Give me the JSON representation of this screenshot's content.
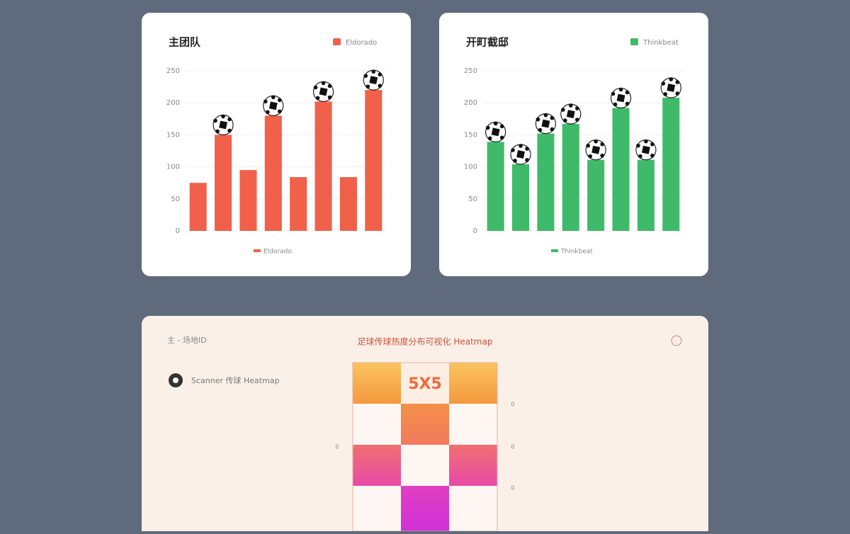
{
  "chart_data": [
    {
      "type": "bar",
      "title": "主团队",
      "series": [
        {
          "name": "Eldorado",
          "color": "#f0604a",
          "values": [
            75,
            150,
            95,
            180,
            84,
            202,
            84,
            220
          ]
        }
      ],
      "ylim": [
        0,
        250
      ],
      "yticks": [
        0,
        50,
        100,
        150,
        200,
        250
      ],
      "grid": true
    },
    {
      "type": "bar",
      "title": "开町截邸",
      "series": [
        {
          "name": "Thinkbeat",
          "color": "#3fba6a",
          "values": [
            139,
            104,
            152,
            167,
            111,
            192,
            111,
            208
          ]
        }
      ],
      "ylim": [
        0,
        250
      ],
      "yticks": [
        0,
        50,
        100,
        150,
        200,
        250
      ],
      "grid": true
    }
  ],
  "heatmap_panel": {
    "header": "主 - 场地ID",
    "title": "足球传球热度分布可视化 Heatmap",
    "item": "Scanner 传球 Heatmap",
    "grid_label": "5X5",
    "left_label": "0",
    "right_labels": [
      "0",
      "0",
      "0"
    ]
  }
}
